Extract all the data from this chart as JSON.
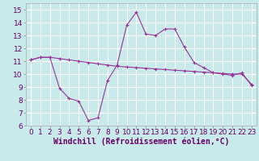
{
  "xlabel": "Windchill (Refroidissement éolien,°C)",
  "line1_x": [
    0,
    1,
    2,
    3,
    4,
    5,
    6,
    7,
    8,
    9,
    10,
    11,
    12,
    13,
    14,
    15,
    16,
    17,
    18,
    19,
    20,
    21,
    22,
    23
  ],
  "line1_y": [
    11.1,
    11.3,
    11.3,
    11.2,
    11.1,
    11.0,
    10.9,
    10.8,
    10.7,
    10.6,
    10.55,
    10.5,
    10.45,
    10.4,
    10.35,
    10.3,
    10.25,
    10.2,
    10.15,
    10.1,
    10.05,
    10.0,
    10.0,
    9.2
  ],
  "line2_x": [
    0,
    1,
    2,
    3,
    4,
    5,
    6,
    7,
    8,
    9,
    10,
    11,
    12,
    13,
    14,
    15,
    16,
    17,
    18,
    19,
    20,
    21,
    22,
    23
  ],
  "line2_y": [
    11.1,
    11.3,
    11.3,
    8.9,
    8.1,
    7.9,
    6.4,
    6.6,
    9.5,
    10.7,
    13.8,
    14.8,
    13.1,
    13.0,
    13.5,
    13.5,
    12.1,
    10.9,
    10.5,
    10.1,
    10.0,
    9.9,
    10.1,
    9.1
  ],
  "line_color": "#993399",
  "bg_color": "#c8eaea",
  "grid_color": "#ffffff",
  "ylim": [
    6,
    15.5
  ],
  "xlim": [
    -0.5,
    23.5
  ],
  "yticks": [
    6,
    7,
    8,
    9,
    10,
    11,
    12,
    13,
    14,
    15
  ],
  "xticks": [
    0,
    1,
    2,
    3,
    4,
    5,
    6,
    7,
    8,
    9,
    10,
    11,
    12,
    13,
    14,
    15,
    16,
    17,
    18,
    19,
    20,
    21,
    22,
    23
  ],
  "tick_fontsize": 6.5,
  "xlabel_fontsize": 7.0,
  "line_width": 0.8,
  "marker_size": 3.5
}
